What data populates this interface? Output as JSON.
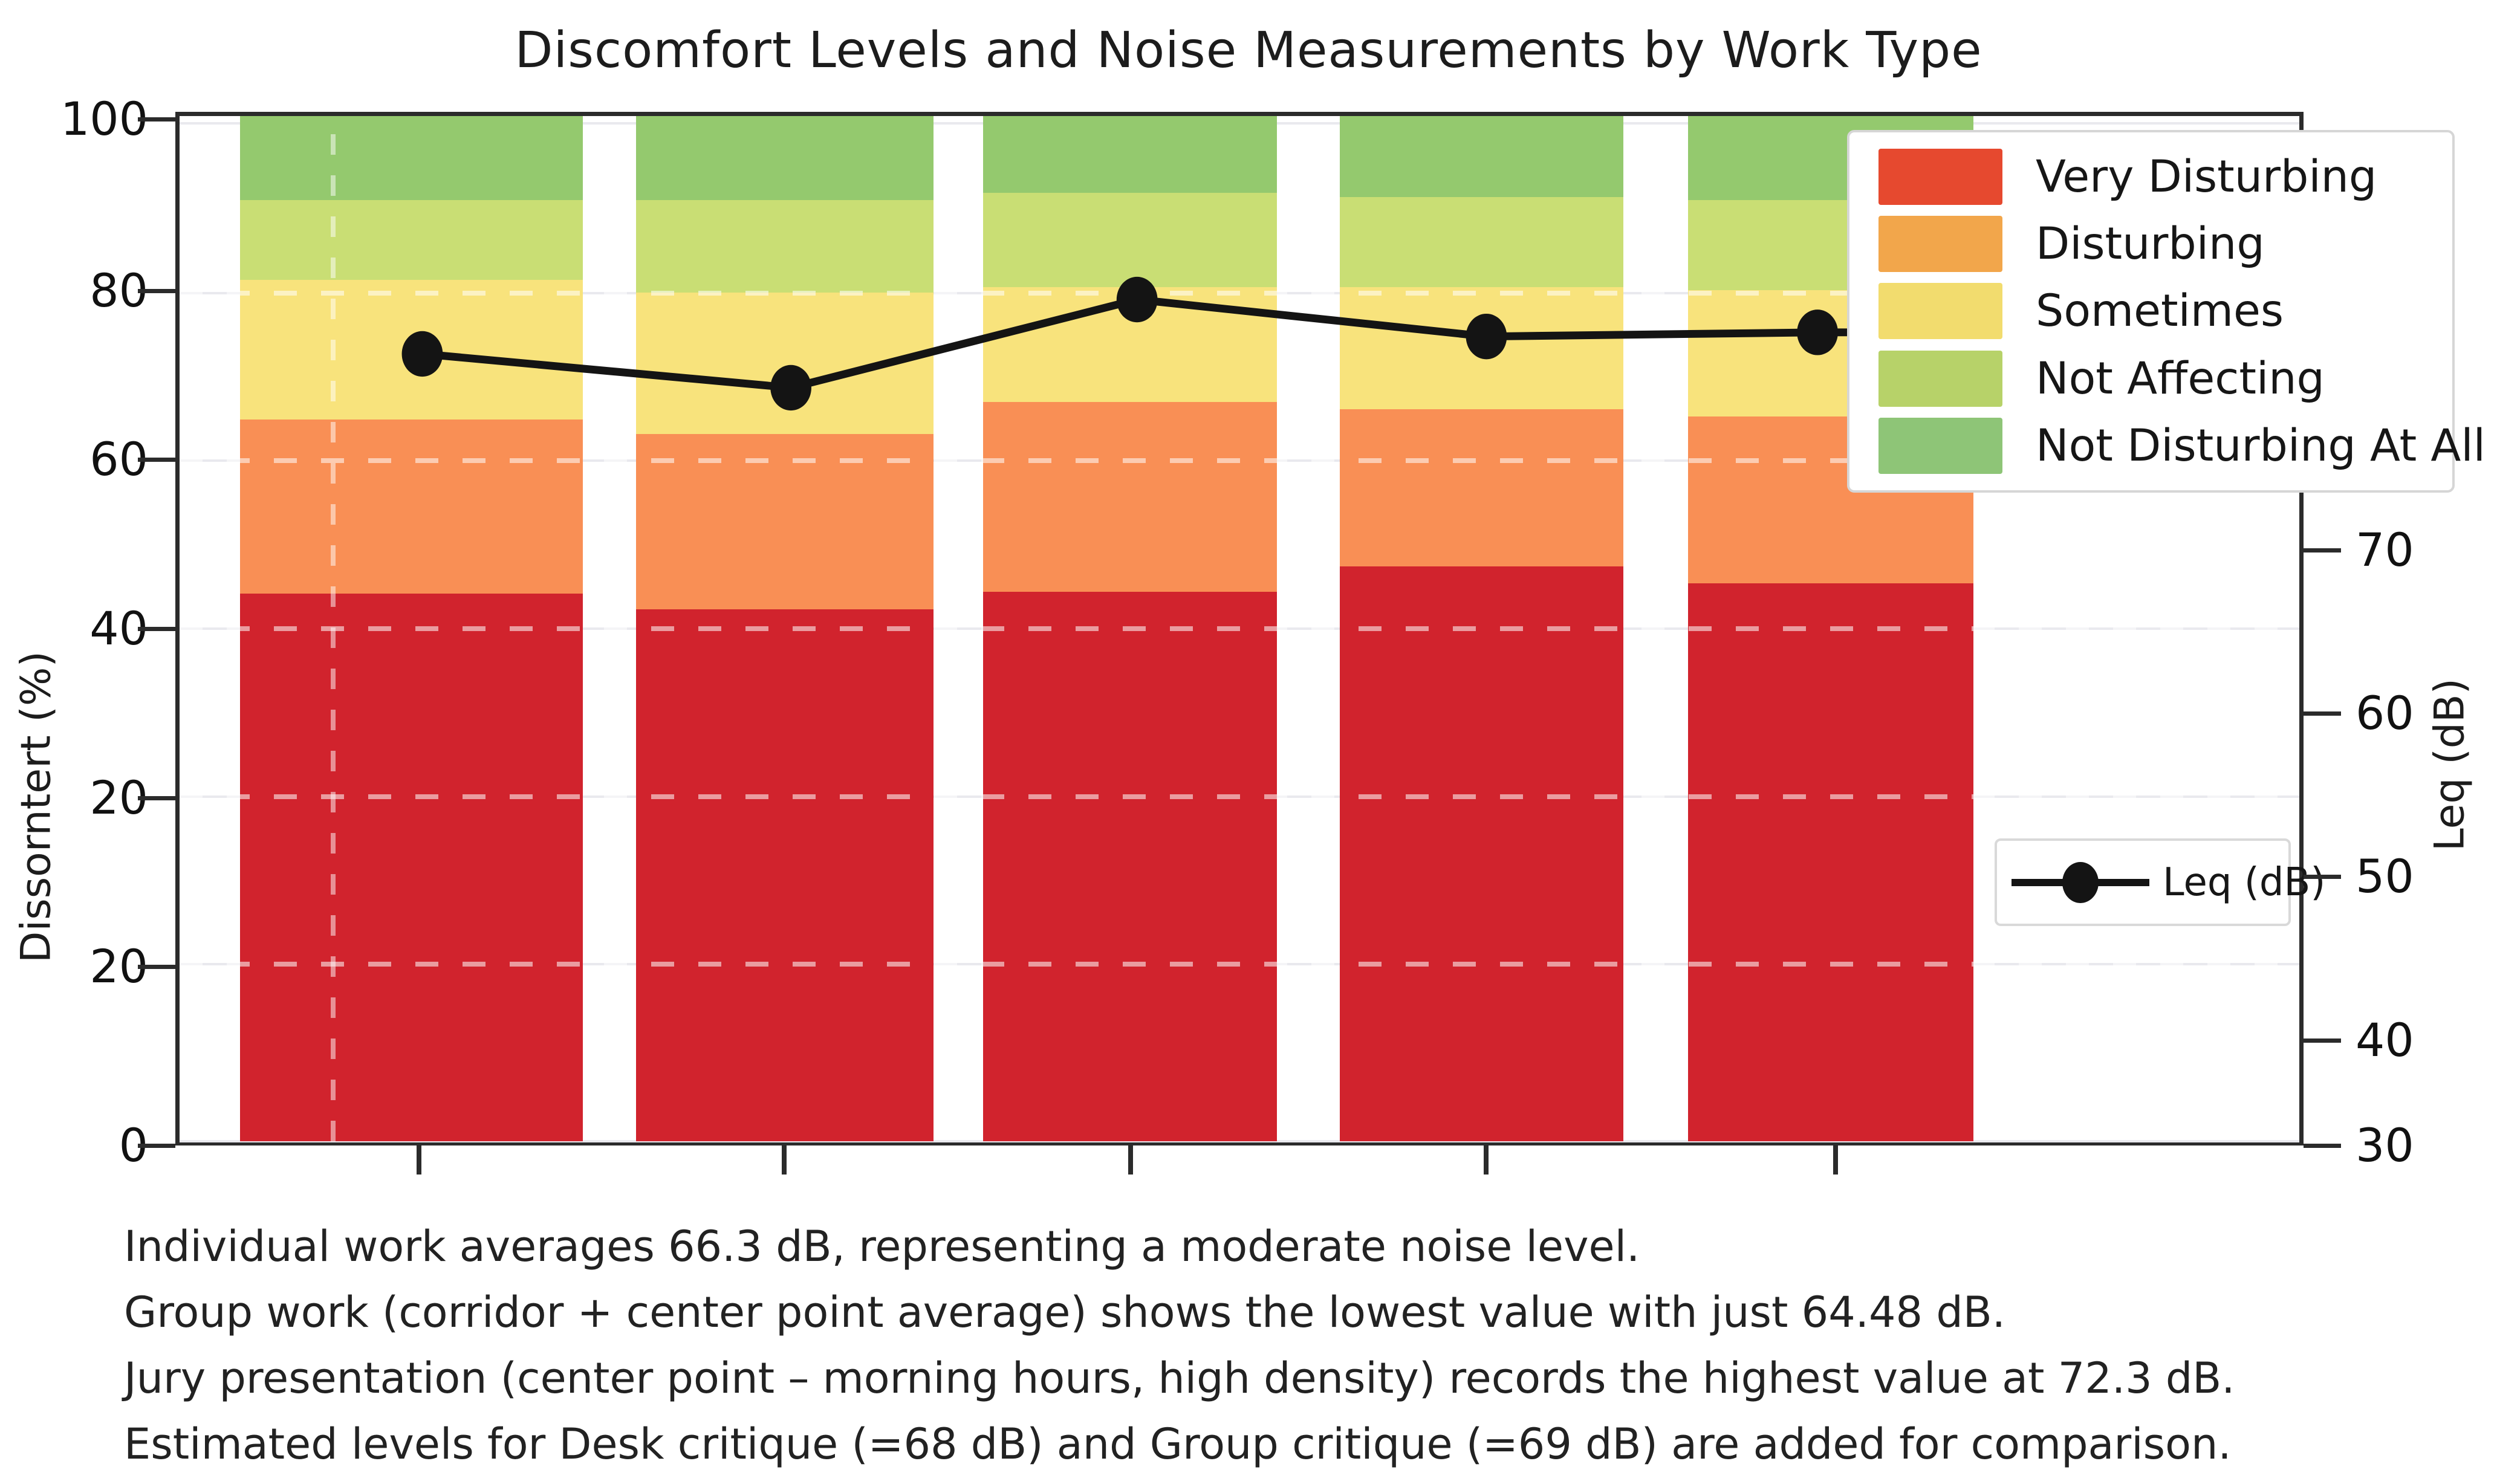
{
  "title": "Discomfort Levels and Noise Measurements by Work Type",
  "left_axis": {
    "label": "Dissorntert (%)",
    "ticks": [
      "100",
      "80",
      "60",
      "40",
      "20",
      "20",
      "0"
    ],
    "tick_pos_pct": [
      0.7,
      17.3,
      33.6,
      50,
      66.4,
      82.7,
      100
    ]
  },
  "right_axis": {
    "label": "Leq (dB)",
    "ticks": [
      "70",
      "60",
      "50",
      "40",
      "30"
    ],
    "tick_pos_pct": [
      42.4,
      58.2,
      74.0,
      89.8,
      100
    ]
  },
  "legend": {
    "entries": [
      {
        "label": "Very Disturbing",
        "color": "#e6492f"
      },
      {
        "label": "Disturbing",
        "color": "#f2a64b"
      },
      {
        "label": "Sometimes",
        "color": "#f2dc6e"
      },
      {
        "label": "Not Affecting",
        "color": "#b7d269"
      },
      {
        "label": "Not Disturbing At All",
        "color": "#8ec577"
      }
    ]
  },
  "line_legend": {
    "label": "Leq (dB)"
  },
  "annotations": {
    "lines": [
      "Individual work averages 66.3 dB, representing a moderate noise level.",
      "Group work (corridor + center point average) shows the lowest value with just 64.48 dB.",
      "Jury presentation (center point – morning hours, high density) records the highest value at 72.3 dB.",
      "Estimated levels for Desk critique (=68 dB) and Group critique (=69 dB) are added for comparison."
    ]
  },
  "chart_data": {
    "type": "bar",
    "subtype": "stacked-bars-with-line-overlay",
    "title": "Discomfort Levels and Noise Measurements by Work Type",
    "xlabel": "",
    "ylabel_left": "Dissorntert (%)",
    "ylabel_right": "Leq (dB)",
    "left_ylim": [
      0,
      100
    ],
    "right_ylim": [
      30,
      70
    ],
    "grid": "dashed horizontal lines at each y tick",
    "legend_position": "upper right",
    "categories": [
      "",
      "",
      "",
      "",
      ""
    ],
    "categories_implied_by_caption": [
      "Individual work",
      "Group work",
      "Jury presentation",
      "Desk critique",
      "Group critique"
    ],
    "stack_series": [
      {
        "name": "Very Disturbing",
        "color": "#d1232d",
        "values": [
          45,
          43.5,
          45,
          48.5,
          46
        ]
      },
      {
        "name": "Disturbing",
        "color": "#f98f55",
        "values": [
          21,
          20,
          22,
          18,
          19.5
        ]
      },
      {
        "name": "Sometimes",
        "color": "#f8e37c",
        "values": [
          16,
          16.5,
          14,
          14.5,
          15
        ]
      },
      {
        "name": "Not Affecting",
        "color": "#c9de74",
        "values": [
          9,
          11,
          11,
          10.5,
          10.5
        ]
      },
      {
        "name": "Not Disturbing At All",
        "color": "#94c96e",
        "values": [
          9,
          9,
          8,
          8.5,
          9
        ]
      }
    ],
    "line_series": {
      "name": "Leq (dB)",
      "color": "#141414",
      "values_on_left_axis_scale": [
        73,
        69,
        80,
        75,
        76
      ],
      "caption_values_dB": [
        66.3,
        64.48,
        72.3,
        68,
        69
      ]
    },
    "render": {
      "bar_left_pct": [
        2.84,
        21.53,
        37.9,
        54.74,
        71.16
      ],
      "bar_width_pct": [
        16.19,
        14.03,
        13.86,
        13.38,
        13.47
      ],
      "seg_heights_pct": [
        [
          53.4,
          17.0,
          13.6,
          7.8,
          8.2
        ],
        [
          51.9,
          17.1,
          13.8,
          9.0,
          8.2
        ],
        [
          53.6,
          18.5,
          11.2,
          9.2,
          7.5
        ],
        [
          56.1,
          15.3,
          11.9,
          8.8,
          7.9
        ],
        [
          54.4,
          16.3,
          12.3,
          8.8,
          8.2
        ]
      ],
      "marker_x_pct": [
        11.45,
        28.84,
        45.17,
        61.65,
        77.27
      ],
      "marker_y_pct": [
        23.2,
        26.5,
        17.9,
        21.5,
        21.1
      ],
      "line_end": {
        "x_pct": 84.6,
        "y_pct": 21.1
      },
      "xtick_pct": [
        11.45,
        28.6,
        44.9,
        61.6,
        78.0
      ],
      "artifact_vline_x_pct": 7.13,
      "dash_grid_pct": [
        17.3,
        33.6,
        50,
        66.4,
        82.7
      ]
    }
  }
}
